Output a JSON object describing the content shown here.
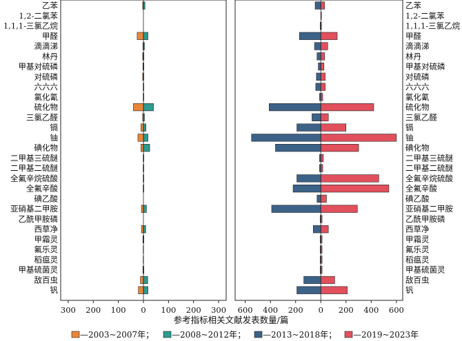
{
  "chart_data": {
    "type": "bar",
    "orientation": "horizontal",
    "xlabel": "参考指标相关文献发表数量/篇",
    "categories": [
      "乙苯",
      "1,2-二氯苯",
      "1,1,1-三氯乙烷",
      "甲醛",
      "滴滴涕",
      "林丹",
      "甲基对硫磷",
      "对硫磷",
      "六六六",
      "氯化氰",
      "硫化物",
      "三氯乙醛",
      "镉",
      "铀",
      "碘化物",
      "二甲基三硫醚",
      "二甲基二硫醚",
      "全氟辛烷硫酸",
      "全氟辛酸",
      "碘乙酸",
      "亚硝基二甲胺",
      "乙酰甲胺磷",
      "西草净",
      "甲霜灵",
      "氟乐灵",
      "稻瘟灵",
      "甲基硫菌灵",
      "敌百虫",
      "钒"
    ],
    "panels": [
      {
        "position": "left",
        "xlim": [
          -330,
          330
        ],
        "xticks": [
          300,
          200,
          100,
          0,
          100,
          200,
          300
        ],
        "series": [
          {
            "name": "2003~2007年",
            "color": "#e8873a",
            "direction": "left",
            "values": [
              3,
              0,
              0,
              25,
              2,
              3,
              2,
              3,
              1,
              1,
              40,
              3,
              10,
              22,
              10,
              1,
              1,
              1,
              1,
              0,
              8,
              0,
              8,
              2,
              1,
              1,
              2,
              12,
              20
            ]
          },
          {
            "name": "2008~2012年",
            "color": "#2f9a8f",
            "direction": "right",
            "values": [
              6,
              0,
              0,
              18,
              4,
              2,
              1,
              1,
              1,
              1,
              40,
              4,
              10,
              18,
              25,
              1,
              1,
              1,
              1,
              0,
              12,
              0,
              9,
              1,
              0,
              0,
              1,
              17,
              18
            ]
          }
        ]
      },
      {
        "position": "right",
        "xlim": [
          -680,
          650
        ],
        "xticks": [
          600,
          400,
          200,
          0,
          200,
          400,
          600
        ],
        "series": [
          {
            "name": "2013~2018年",
            "color": "#3c6288",
            "direction": "left",
            "values": [
              45,
              0,
              5,
              170,
              50,
              30,
              20,
              35,
              40,
              10,
              410,
              70,
              190,
              550,
              360,
              10,
              10,
              190,
              220,
              30,
              390,
              5,
              60,
              5,
              5,
              5,
              5,
              135,
              190
            ]
          },
          {
            "name": "2019~2023年",
            "color": "#e1505c",
            "direction": "right",
            "values": [
              30,
              5,
              5,
              130,
              55,
              30,
              25,
              35,
              35,
              15,
              420,
              60,
              200,
              600,
              300,
              20,
              15,
              460,
              540,
              45,
              290,
              10,
              60,
              10,
              10,
              10,
              10,
              110,
              210
            ]
          }
        ]
      }
    ],
    "legend": {
      "position": "bottom",
      "labels": [
        "—2003~2007年；",
        "—2008~2012年；",
        "—2013~2018年；",
        "—2019~2023年"
      ]
    }
  }
}
